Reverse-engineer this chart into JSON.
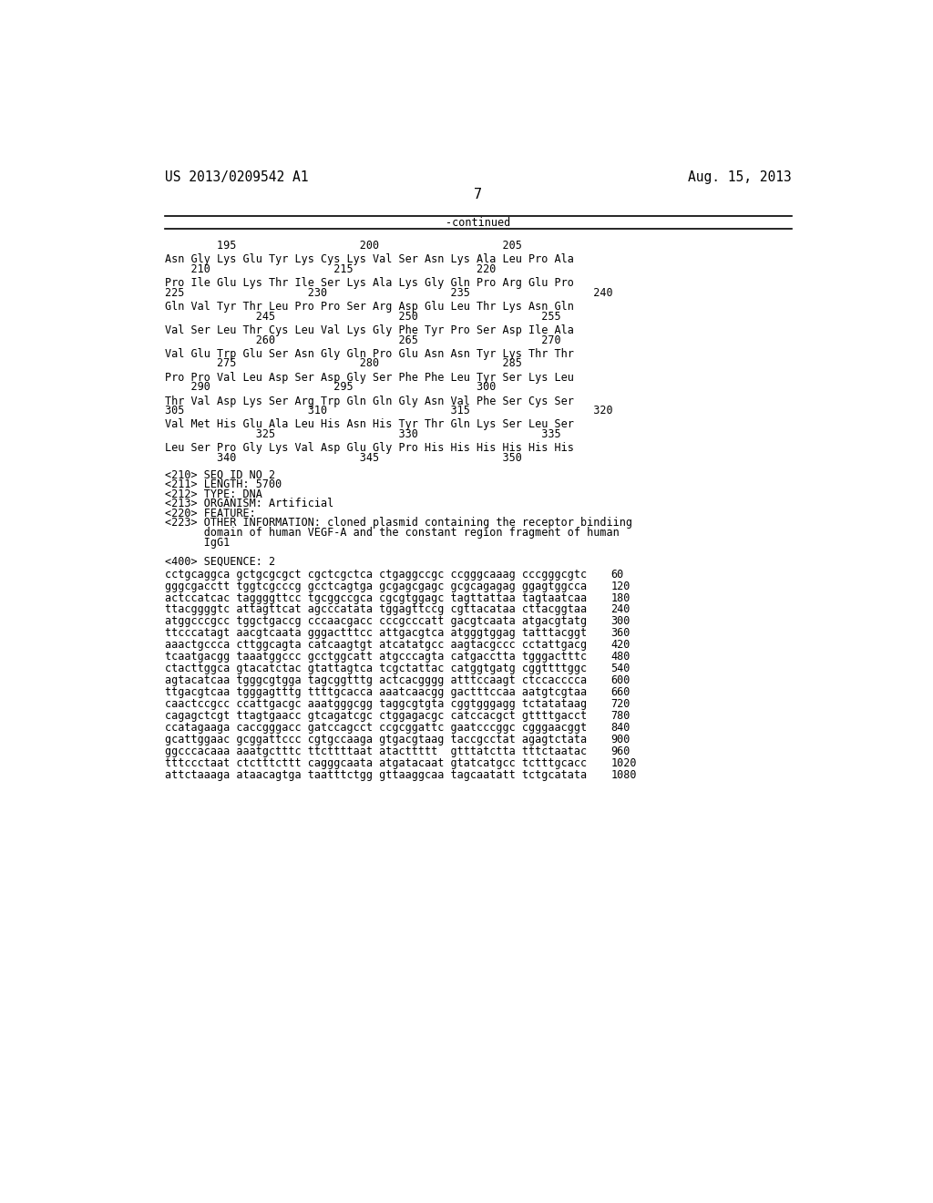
{
  "background_color": "#ffffff",
  "header_left": "US 2013/0209542 A1",
  "header_right": "Aug. 15, 2013",
  "page_number": "7",
  "continued_label": "-continued",
  "font_family": "DejaVu Sans Mono",
  "font_size": 8.5,
  "header_font_size": 10.5,
  "page_num_font_size": 11,
  "sequence_lines": [
    {
      "type": "ruler",
      "text": "        195                   200                   205"
    },
    {
      "type": "blank"
    },
    {
      "type": "seq",
      "text": "Asn Gly Lys Glu Tyr Lys Cys Lys Val Ser Asn Lys Ala Leu Pro Ala"
    },
    {
      "type": "nums",
      "text": "    210                   215                   220"
    },
    {
      "type": "blank"
    },
    {
      "type": "seq",
      "text": "Pro Ile Glu Lys Thr Ile Ser Lys Ala Lys Gly Gln Pro Arg Glu Pro"
    },
    {
      "type": "nums",
      "text": "225                   230                   235                   240"
    },
    {
      "type": "blank"
    },
    {
      "type": "seq",
      "text": "Gln Val Tyr Thr Leu Pro Pro Ser Arg Asp Glu Leu Thr Lys Asn Gln"
    },
    {
      "type": "nums",
      "text": "              245                   250                   255"
    },
    {
      "type": "blank"
    },
    {
      "type": "seq",
      "text": "Val Ser Leu Thr Cys Leu Val Lys Gly Phe Tyr Pro Ser Asp Ile Ala"
    },
    {
      "type": "nums",
      "text": "              260                   265                   270"
    },
    {
      "type": "blank"
    },
    {
      "type": "seq",
      "text": "Val Glu Trp Glu Ser Asn Gly Gln Pro Glu Asn Asn Tyr Lys Thr Thr"
    },
    {
      "type": "nums",
      "text": "        275                   280                   285"
    },
    {
      "type": "blank"
    },
    {
      "type": "seq",
      "text": "Pro Pro Val Leu Asp Ser Asp Gly Ser Phe Phe Leu Tyr Ser Lys Leu"
    },
    {
      "type": "nums",
      "text": "    290                   295                   300"
    },
    {
      "type": "blank"
    },
    {
      "type": "seq",
      "text": "Thr Val Asp Lys Ser Arg Trp Gln Gln Gly Asn Val Phe Ser Cys Ser"
    },
    {
      "type": "nums",
      "text": "305                   310                   315                   320"
    },
    {
      "type": "blank"
    },
    {
      "type": "seq",
      "text": "Val Met His Glu Ala Leu His Asn His Tyr Thr Gln Lys Ser Leu Ser"
    },
    {
      "type": "nums",
      "text": "              325                   330                   335"
    },
    {
      "type": "blank"
    },
    {
      "type": "seq",
      "text": "Leu Ser Pro Gly Lys Val Asp Glu Gly Pro His His His His His His"
    },
    {
      "type": "nums",
      "text": "        340                   345                   350"
    }
  ],
  "metadata_lines": [
    "<210> SEQ ID NO 2",
    "<211> LENGTH: 5700",
    "<212> TYPE: DNA",
    "<213> ORGANISM: Artificial",
    "<220> FEATURE:",
    "<223> OTHER INFORMATION: cloned plasmid containing the receptor bindiing",
    "      domain of human VEGF-A and the constant region fragment of human",
    "      IgG1",
    "",
    "<400> SEQUENCE: 2"
  ],
  "dna_lines": [
    {
      "seq": "cctgcaggca gctgcgcgct cgctcgctca ctgaggccgc ccgggcaaag cccgggcgtc",
      "num": "60"
    },
    {
      "seq": "gggcgacctt tggtcgcccg gcctcagtga gcgagcgagc gcgcagagag ggagtggcca",
      "num": "120"
    },
    {
      "seq": "actccatcac taggggttcc tgcggccgca cgcgtggagc tagttattaa tagtaatcaa",
      "num": "180"
    },
    {
      "seq": "ttacggggtc attagttcat agcccatata tggagttccg cgttacataa cttacggtaa",
      "num": "240"
    },
    {
      "seq": "atggcccgcc tggctgaccg cccaacgacc cccgcccatt gacgtcaata atgacgtatg",
      "num": "300"
    },
    {
      "seq": "ttcccatagt aacgtcaata gggactttcc attgacgtca atgggtggag tatttacggt",
      "num": "360"
    },
    {
      "seq": "aaactgccca cttggcagta catcaagtgt atcatatgcc aagtacgccc cctattgacg",
      "num": "420"
    },
    {
      "seq": "tcaatgacgg taaatggccc gcctggcatt atgcccagta catgacctta tgggactttc",
      "num": "480"
    },
    {
      "seq": "ctacttggca gtacatctac gtattagtca tcgctattac catggtgatg cggttttggc",
      "num": "540"
    },
    {
      "seq": "agtacatcaa tgggcgtgga tagcggtttg actcacgggg atttccaagt ctccacccca",
      "num": "600"
    },
    {
      "seq": "ttgacgtcaa tgggagtttg ttttgcacca aaatcaacgg gactttccaa aatgtcgtaa",
      "num": "660"
    },
    {
      "seq": "caactccgcc ccattgacgc aaatgggcgg taggcgtgta cggtgggagg tctatataag",
      "num": "720"
    },
    {
      "seq": "cagagctcgt ttagtgaacc gtcagatcgc ctggagacgc catccacgct gttttgacct",
      "num": "780"
    },
    {
      "seq": "ccatagaaga caccgggacc gatccagcct ccgcggattc gaatcccggc cgggaacggt",
      "num": "840"
    },
    {
      "seq": "gcattggaac gcggattccc cgtgccaaga gtgacgtaag taccgcctat agagtctata",
      "num": "900"
    },
    {
      "seq": "ggcccacaaa aaatgctttc ttcttttaat atacttttt  gtttatctta tttctaatac",
      "num": "960"
    },
    {
      "seq": "tttccctaat ctctttcttt cagggcaata atgatacaat gtatcatgcc tctttgcacc",
      "num": "1020"
    },
    {
      "seq": "attctaaaga ataacagtga taatttctgg gttaaggcaa tagcaatatt tctgcatata",
      "num": "1080"
    }
  ]
}
